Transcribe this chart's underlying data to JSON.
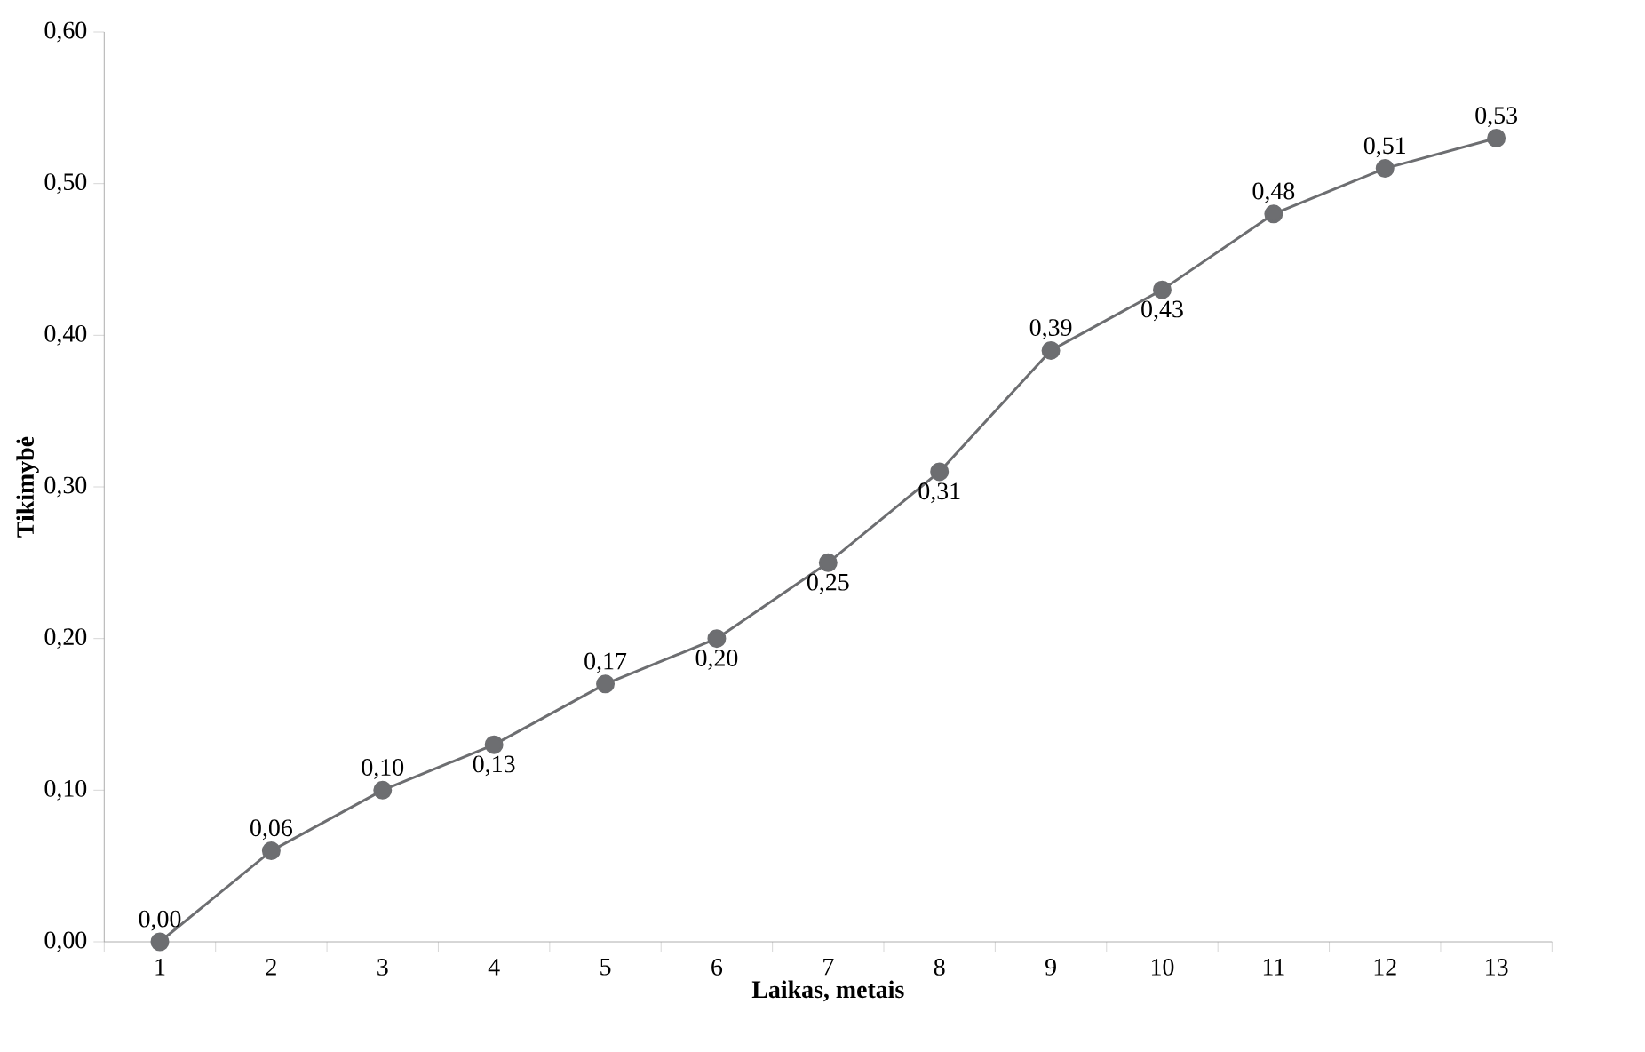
{
  "chart_data": {
    "type": "line",
    "xlabel": "Laikas, metais",
    "ylabel": "Tikimybė",
    "categories": [
      "1",
      "2",
      "3",
      "4",
      "5",
      "6",
      "7",
      "8",
      "9",
      "10",
      "11",
      "12",
      "13"
    ],
    "values": [
      0.0,
      0.06,
      0.1,
      0.13,
      0.17,
      0.2,
      0.25,
      0.31,
      0.39,
      0.43,
      0.48,
      0.51,
      0.53
    ],
    "value_labels": [
      "0,00",
      "0,06",
      "0,10",
      "0,13",
      "0,17",
      "0,20",
      "0,25",
      "0,31",
      "0,39",
      "0,43",
      "0,48",
      "0,51",
      "0,53"
    ],
    "color": "#6d6e71",
    "marker": "circle",
    "line_style": "solid",
    "grid": false,
    "ylim": [
      0,
      0.6
    ],
    "yticks": [
      {
        "value": 0,
        "label": "0,00"
      },
      {
        "value": 0.1,
        "label": "0,10"
      },
      {
        "value": 0.2,
        "label": "0,20"
      },
      {
        "value": 0.3,
        "label": "0,30"
      },
      {
        "value": 0.4,
        "label": "0,40"
      },
      {
        "value": 0.5,
        "label": "0,50"
      },
      {
        "value": 0.6,
        "label": "0,60"
      }
    ]
  }
}
